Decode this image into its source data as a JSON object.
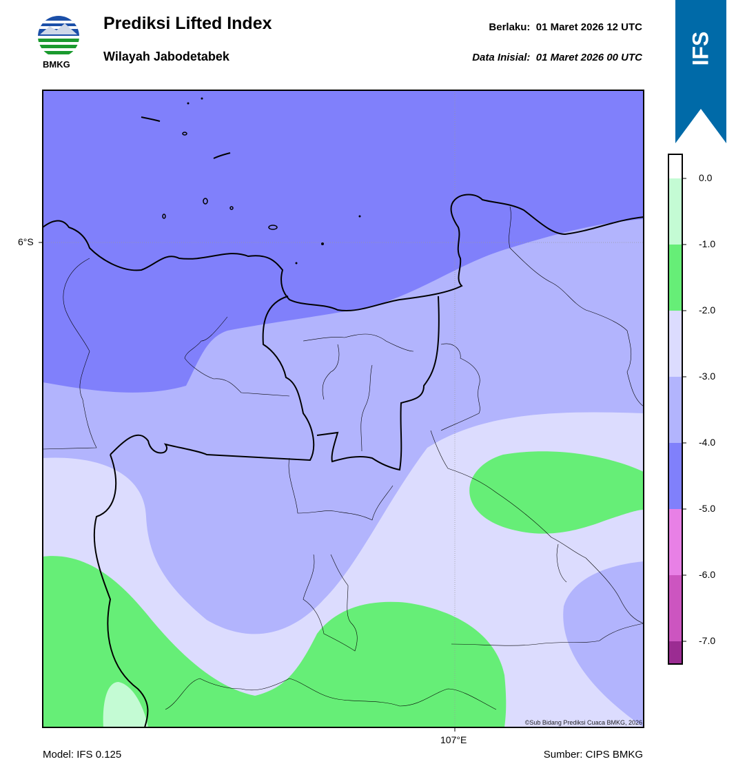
{
  "header": {
    "title": "Prediksi Lifted Index",
    "subtitle": "Wilayah Jabodetabek",
    "valid_label": "Berlaku:  01 Maret 2026 12 UTC",
    "init_label": "Data Inisial:  01 Maret 2026 00 UTC"
  },
  "logo": {
    "text": "BMKG",
    "icon": "bmkg-logo-icon"
  },
  "badge": {
    "text": "IFS",
    "color": "#006aa8"
  },
  "map": {
    "lat_label": "6°S",
    "lon_label": "107°E",
    "copyright": "©Sub Bidang Prediksi Cuaca BMKG, 2026"
  },
  "colorbar": {
    "ticks": [
      "0.0",
      "-1.0",
      "-2.0",
      "-3.0",
      "-4.0",
      "-5.0",
      "-6.0",
      "-7.0"
    ],
    "colors": [
      "#ffffff",
      "#c4fbd4",
      "#66ee77",
      "#dcdcfe",
      "#b2b4fd",
      "#8080fb",
      "#e880e6",
      "#cc55c0",
      "#9b2c92"
    ]
  },
  "footer": {
    "model": "Model: IFS 0.125",
    "source": "Sumber: CIPS BMKG"
  }
}
